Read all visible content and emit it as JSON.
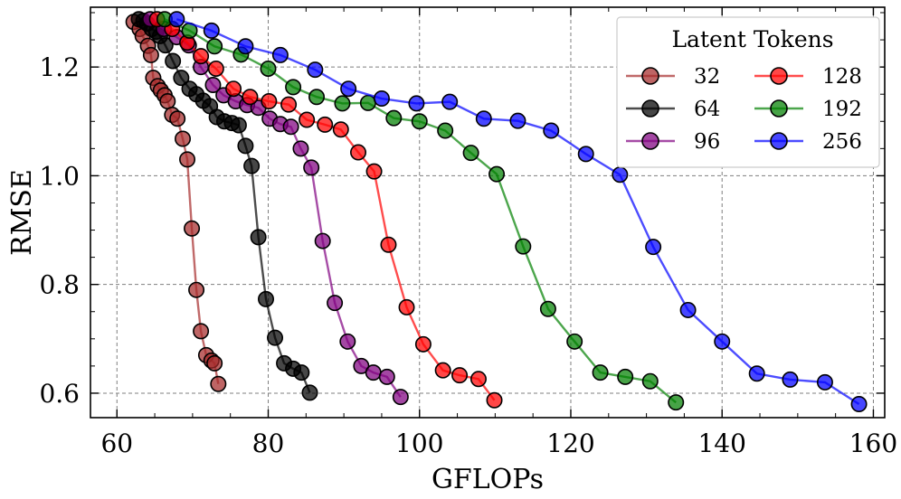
{
  "chart_data": {
    "type": "line",
    "xlabel": "GFLOPs",
    "ylabel": "RMSE",
    "xlim": [
      56.5,
      161.5
    ],
    "ylim": [
      0.555,
      1.31
    ],
    "xticks": [
      60,
      80,
      100,
      120,
      140,
      160
    ],
    "yticks": [
      0.6,
      0.8,
      1.0,
      1.2
    ],
    "xtick_labels": [
      "60",
      "80",
      "100",
      "120",
      "140",
      "160"
    ],
    "ytick_labels": [
      "0.6",
      "0.8",
      "1.0",
      "1.2"
    ],
    "grid": true,
    "legend": {
      "title": "Latent Tokens",
      "position": "top-right",
      "columns": 2
    },
    "series": [
      {
        "name": "32",
        "color": "#a52a2a",
        "points": [
          [
            62.2,
            1.283
          ],
          [
            63.0,
            1.27
          ],
          [
            63.4,
            1.257
          ],
          [
            64.1,
            1.239
          ],
          [
            64.5,
            1.222
          ],
          [
            64.8,
            1.18
          ],
          [
            65.4,
            1.165
          ],
          [
            65.8,
            1.157
          ],
          [
            66.3,
            1.148
          ],
          [
            66.7,
            1.137
          ],
          [
            67.3,
            1.112
          ],
          [
            68.0,
            1.105
          ],
          [
            68.7,
            1.068
          ],
          [
            69.3,
            1.03
          ],
          [
            69.9,
            0.903
          ],
          [
            70.5,
            0.79
          ],
          [
            71.1,
            0.714
          ],
          [
            71.8,
            0.67
          ],
          [
            72.5,
            0.66
          ],
          [
            72.9,
            0.655
          ],
          [
            73.4,
            0.617
          ]
        ]
      },
      {
        "name": "64",
        "color": "#000000",
        "points": [
          [
            62.9,
            1.288
          ],
          [
            63.5,
            1.285
          ],
          [
            64.0,
            1.28
          ],
          [
            64.6,
            1.27
          ],
          [
            65.2,
            1.265
          ],
          [
            65.7,
            1.257
          ],
          [
            66.4,
            1.24
          ],
          [
            67.4,
            1.211
          ],
          [
            68.5,
            1.18
          ],
          [
            69.6,
            1.16
          ],
          [
            70.5,
            1.15
          ],
          [
            71.4,
            1.138
          ],
          [
            72.3,
            1.128
          ],
          [
            73.2,
            1.108
          ],
          [
            74.2,
            1.1
          ],
          [
            75.2,
            1.097
          ],
          [
            76.1,
            1.093
          ],
          [
            77.0,
            1.055
          ],
          [
            77.8,
            1.018
          ],
          [
            78.7,
            0.887
          ],
          [
            79.7,
            0.773
          ],
          [
            80.9,
            0.702
          ],
          [
            82.1,
            0.655
          ],
          [
            83.3,
            0.645
          ],
          [
            84.4,
            0.638
          ],
          [
            85.5,
            0.601
          ]
        ]
      },
      {
        "name": "96",
        "color": "#800080",
        "points": [
          [
            64.4,
            1.288
          ],
          [
            66.2,
            1.27
          ],
          [
            67.9,
            1.255
          ],
          [
            69.5,
            1.24
          ],
          [
            71.1,
            1.2
          ],
          [
            72.7,
            1.167
          ],
          [
            74.1,
            1.148
          ],
          [
            75.7,
            1.137
          ],
          [
            77.2,
            1.13
          ],
          [
            78.7,
            1.125
          ],
          [
            80.2,
            1.105
          ],
          [
            81.6,
            1.095
          ],
          [
            83.0,
            1.09
          ],
          [
            84.3,
            1.05
          ],
          [
            85.7,
            1.015
          ],
          [
            87.2,
            0.88
          ],
          [
            88.8,
            0.766
          ],
          [
            90.5,
            0.695
          ],
          [
            92.3,
            0.65
          ],
          [
            93.9,
            0.638
          ],
          [
            95.7,
            0.63
          ],
          [
            97.5,
            0.593
          ]
        ]
      },
      {
        "name": "128",
        "color": "#ff0000",
        "points": [
          [
            65.3,
            1.288
          ],
          [
            67.3,
            1.27
          ],
          [
            69.3,
            1.245
          ],
          [
            71.1,
            1.22
          ],
          [
            73.1,
            1.197
          ],
          [
            75.4,
            1.16
          ],
          [
            77.6,
            1.145
          ],
          [
            80.1,
            1.137
          ],
          [
            82.7,
            1.131
          ],
          [
            85.1,
            1.103
          ],
          [
            87.5,
            1.094
          ],
          [
            89.6,
            1.085
          ],
          [
            91.9,
            1.043
          ],
          [
            94.0,
            1.008
          ],
          [
            95.9,
            0.873
          ],
          [
            98.3,
            0.758
          ],
          [
            100.5,
            0.69
          ],
          [
            103.1,
            0.642
          ],
          [
            105.3,
            0.633
          ],
          [
            107.8,
            0.626
          ],
          [
            109.9,
            0.587
          ]
        ]
      },
      {
        "name": "192",
        "color": "#008000",
        "points": [
          [
            66.3,
            1.288
          ],
          [
            69.6,
            1.267
          ],
          [
            72.9,
            1.238
          ],
          [
            76.4,
            1.223
          ],
          [
            80.0,
            1.197
          ],
          [
            83.3,
            1.163
          ],
          [
            86.4,
            1.145
          ],
          [
            89.8,
            1.133
          ],
          [
            93.2,
            1.134
          ],
          [
            96.6,
            1.106
          ],
          [
            100.0,
            1.1
          ],
          [
            103.4,
            1.083
          ],
          [
            106.8,
            1.042
          ],
          [
            110.2,
            1.003
          ],
          [
            113.7,
            0.87
          ],
          [
            117.0,
            0.755
          ],
          [
            120.5,
            0.695
          ],
          [
            123.9,
            0.638
          ],
          [
            127.2,
            0.63
          ],
          [
            130.5,
            0.622
          ],
          [
            133.9,
            0.583
          ]
        ]
      },
      {
        "name": "256",
        "color": "#0000ff",
        "points": [
          [
            67.9,
            1.288
          ],
          [
            72.5,
            1.267
          ],
          [
            77.0,
            1.238
          ],
          [
            81.6,
            1.222
          ],
          [
            86.2,
            1.195
          ],
          [
            90.6,
            1.16
          ],
          [
            95.0,
            1.142
          ],
          [
            99.6,
            1.133
          ],
          [
            104.0,
            1.136
          ],
          [
            108.5,
            1.105
          ],
          [
            113.0,
            1.101
          ],
          [
            117.4,
            1.083
          ],
          [
            122.0,
            1.04
          ],
          [
            126.5,
            1.002
          ],
          [
            130.9,
            0.869
          ],
          [
            135.5,
            0.753
          ],
          [
            140.0,
            0.695
          ],
          [
            144.6,
            0.636
          ],
          [
            149.0,
            0.625
          ],
          [
            153.6,
            0.62
          ],
          [
            158.1,
            0.58
          ]
        ]
      }
    ]
  }
}
